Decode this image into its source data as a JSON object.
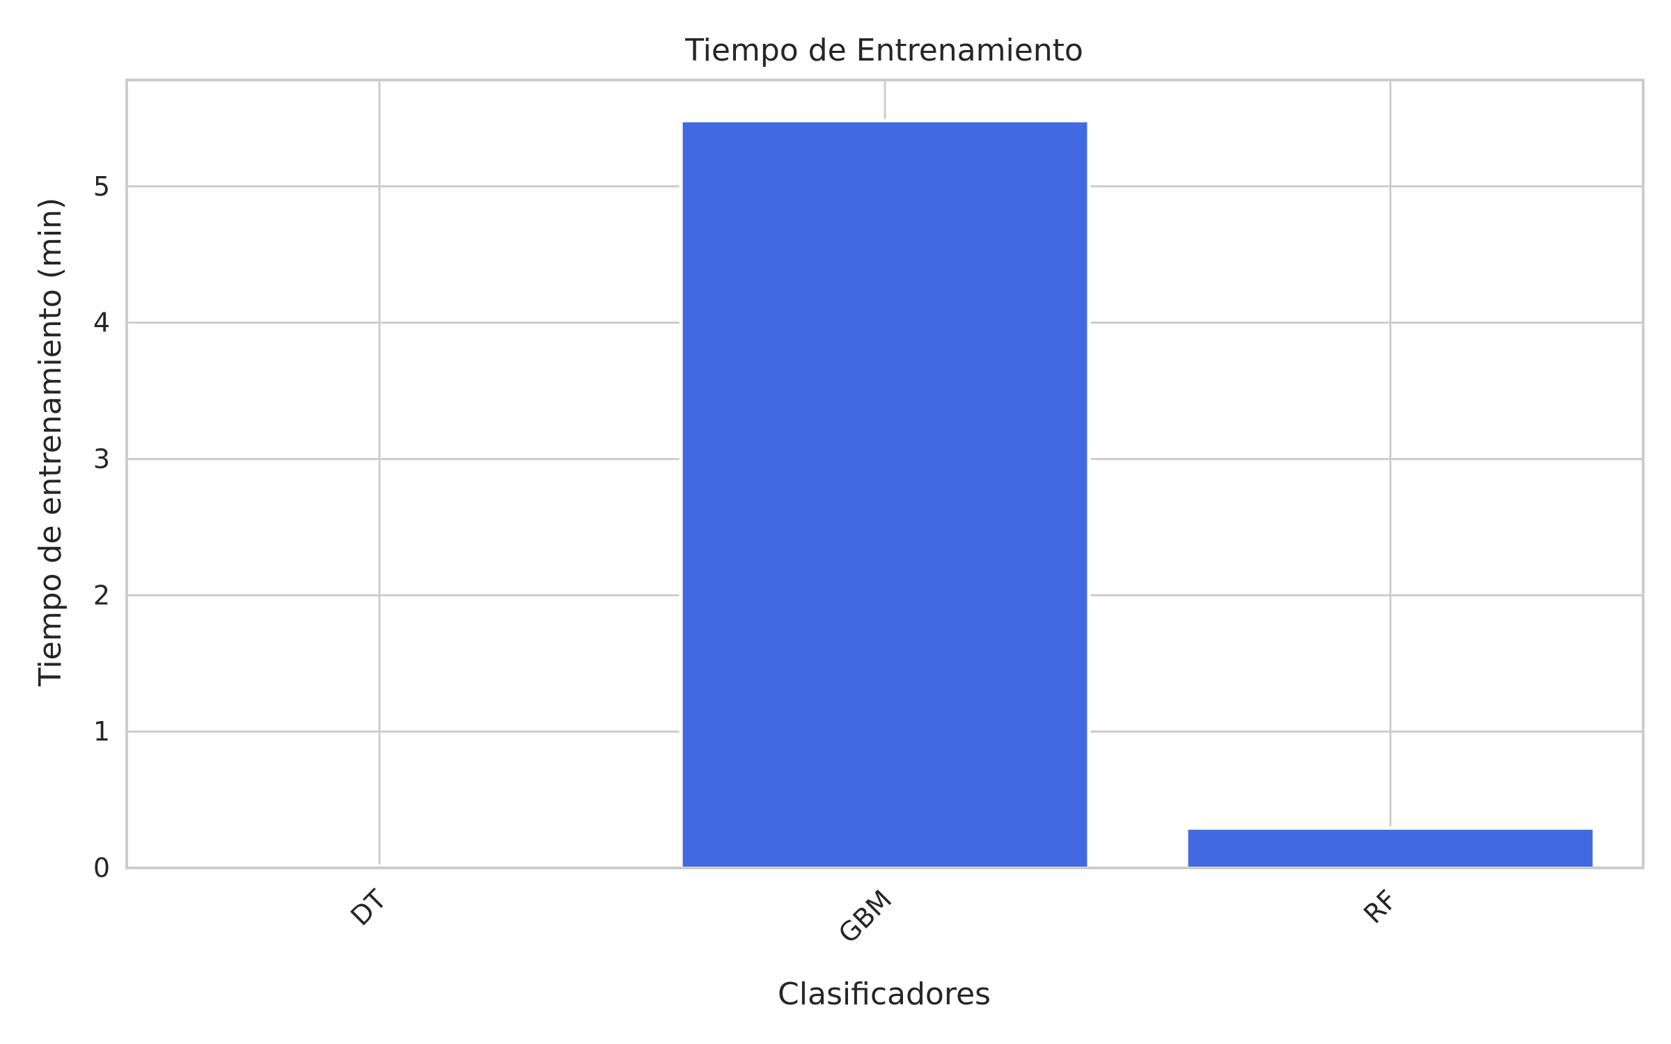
{
  "chart_data": {
    "type": "bar",
    "title": "Tiempo de Entrenamiento",
    "xlabel": "Clasificadores",
    "ylabel": "Tiempo de entrenamiento (min)",
    "categories": [
      "DT",
      "GBM",
      "RF"
    ],
    "values": [
      0.0,
      5.47,
      0.28
    ],
    "ylim": [
      0,
      5.78
    ],
    "yticks": [
      0,
      1,
      2,
      3,
      4,
      5
    ],
    "grid": true,
    "legend": "none",
    "bar_color": "#4169E1",
    "grid_color": "#cccccc",
    "axes_edge_color": "#cccccc"
  }
}
